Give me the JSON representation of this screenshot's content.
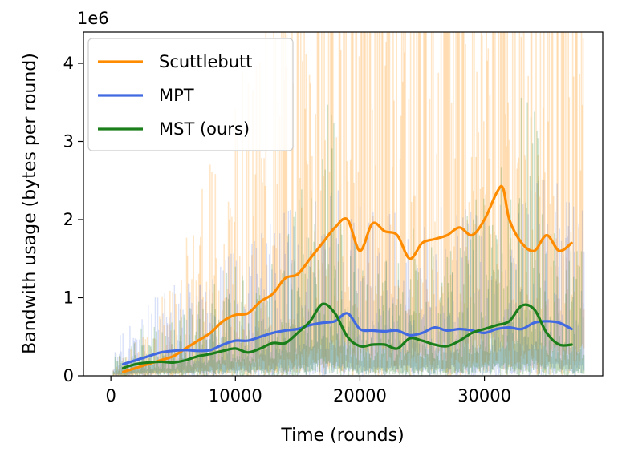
{
  "chart_data": {
    "type": "line",
    "xlabel": "Time (rounds)",
    "ylabel": "Bandwith usage (bytes per round)",
    "offset_label": "1e6",
    "xlim": [
      -2200,
      39500
    ],
    "ylim": [
      0,
      4.4
    ],
    "xticks": [
      0,
      10000,
      20000,
      30000
    ],
    "xtick_labels": [
      "0",
      "10000",
      "20000",
      "30000"
    ],
    "yticks": [
      0,
      1,
      2,
      3,
      4
    ],
    "ytick_labels": [
      "0",
      "1",
      "2",
      "3",
      "4"
    ],
    "grid": false,
    "legend_position": "top-left",
    "series": [
      {
        "name": "Scuttlebutt",
        "color": "#ff8c00",
        "x": [
          1000,
          2000,
          3000,
          4000,
          5000,
          6000,
          7000,
          8000,
          9000,
          10000,
          11000,
          12000,
          13000,
          14000,
          15000,
          16000,
          17000,
          18000,
          19000,
          20000,
          21000,
          22000,
          23000,
          24000,
          25000,
          26000,
          27000,
          28000,
          29000,
          30000,
          31000,
          31500,
          32000,
          33000,
          34000,
          35000,
          36000,
          37000
        ],
        "values": [
          0.05,
          0.1,
          0.15,
          0.2,
          0.25,
          0.35,
          0.45,
          0.55,
          0.7,
          0.78,
          0.8,
          0.95,
          1.05,
          1.25,
          1.3,
          1.5,
          1.7,
          1.9,
          2.0,
          1.6,
          1.95,
          1.85,
          1.8,
          1.5,
          1.7,
          1.75,
          1.8,
          1.9,
          1.8,
          2.0,
          2.35,
          2.4,
          2.0,
          1.7,
          1.6,
          1.8,
          1.6,
          1.7
        ]
      },
      {
        "name": "MPT",
        "color": "#4169e1",
        "x": [
          1000,
          2000,
          3000,
          4000,
          5000,
          6000,
          7000,
          8000,
          9000,
          10000,
          11000,
          12000,
          13000,
          14000,
          15000,
          16000,
          17000,
          18000,
          19000,
          20000,
          21000,
          22000,
          23000,
          24000,
          25000,
          26000,
          27000,
          28000,
          29000,
          30000,
          31000,
          32000,
          33000,
          34000,
          35000,
          36000,
          37000
        ],
        "values": [
          0.15,
          0.2,
          0.25,
          0.3,
          0.32,
          0.33,
          0.32,
          0.33,
          0.4,
          0.45,
          0.45,
          0.5,
          0.55,
          0.58,
          0.6,
          0.65,
          0.68,
          0.7,
          0.8,
          0.6,
          0.58,
          0.57,
          0.58,
          0.52,
          0.55,
          0.62,
          0.58,
          0.6,
          0.58,
          0.55,
          0.6,
          0.62,
          0.6,
          0.68,
          0.7,
          0.68,
          0.6
        ]
      },
      {
        "name": "MST (ours)",
        "color": "#1a7f1a",
        "x": [
          1000,
          2000,
          3000,
          4000,
          5000,
          6000,
          7000,
          8000,
          9000,
          10000,
          11000,
          12000,
          13000,
          14000,
          15000,
          16000,
          17000,
          18000,
          19000,
          20000,
          21000,
          22000,
          23000,
          24000,
          25000,
          26000,
          27000,
          28000,
          29000,
          30000,
          31000,
          32000,
          33000,
          34000,
          35000,
          36000,
          37000
        ],
        "values": [
          0.1,
          0.15,
          0.17,
          0.18,
          0.17,
          0.2,
          0.25,
          0.28,
          0.32,
          0.35,
          0.3,
          0.35,
          0.42,
          0.42,
          0.55,
          0.7,
          0.92,
          0.8,
          0.5,
          0.38,
          0.4,
          0.4,
          0.35,
          0.48,
          0.45,
          0.4,
          0.38,
          0.45,
          0.55,
          0.6,
          0.65,
          0.7,
          0.9,
          0.85,
          0.55,
          0.4,
          0.4
        ]
      }
    ]
  }
}
